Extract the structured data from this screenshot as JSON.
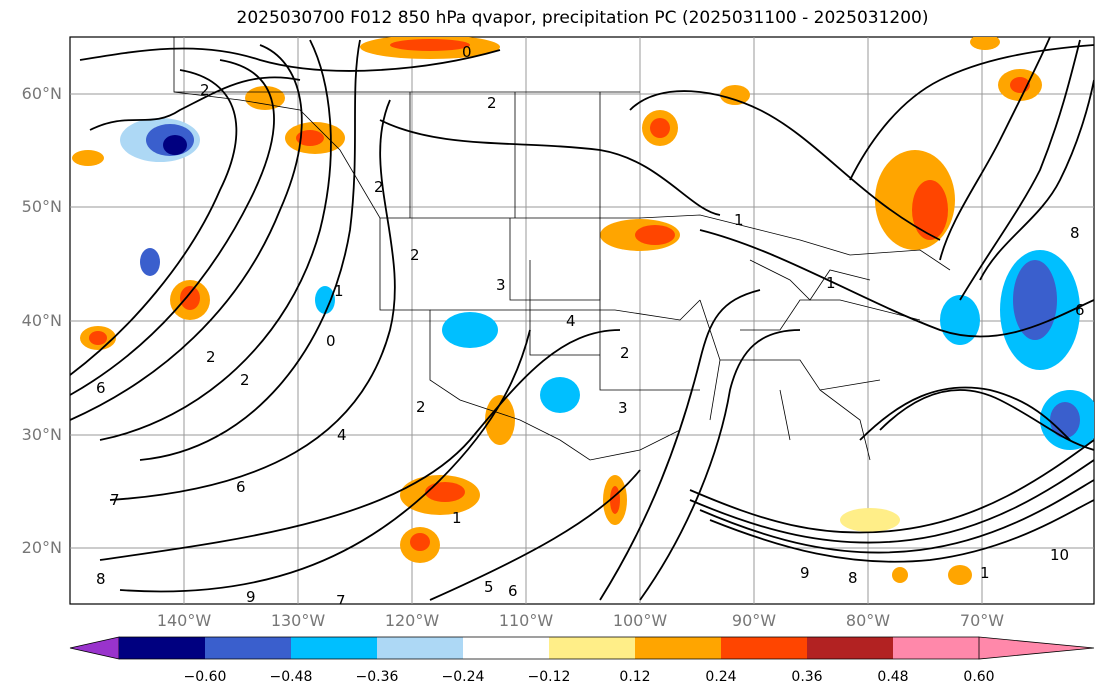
{
  "title": "2025030700 F012 850 hPa qvapor, precipitation PC (2025031100 - 2025031200)",
  "map": {
    "lat_labels": [
      "60°N",
      "50°N",
      "40°N",
      "30°N",
      "20°N"
    ],
    "lon_labels": [
      "140°W",
      "130°W",
      "120°W",
      "110°W",
      "100°W",
      "90°W",
      "80°W",
      "70°W"
    ],
    "contour_labels": [
      "0",
      "2",
      "2",
      "1",
      "2",
      "1",
      "2",
      "3",
      "4",
      "2",
      "2",
      "1",
      "0",
      "4",
      "2",
      "6",
      "6",
      "7",
      "8",
      "9",
      "7",
      "5",
      "6",
      "1",
      "9",
      "10",
      "1",
      "6",
      "8",
      "3",
      "2",
      "8"
    ]
  },
  "colorbar": {
    "colors": [
      "#9933cc",
      "#000080",
      "#3a5fcd",
      "#00bfff",
      "#add8f5",
      "#ffffff",
      "#ffee88",
      "#ffa500",
      "#ff4500",
      "#b22222",
      "#ff88aa"
    ],
    "ticks": [
      "−0.60",
      "−0.48",
      "−0.36",
      "−0.24",
      "−0.12",
      "0.12",
      "0.24",
      "0.36",
      "0.48",
      "0.60"
    ]
  },
  "shading_colors": {
    "orange": "#ffa500",
    "yellow": "#ffee88",
    "red": "#ff4500",
    "dark_red": "#b22222",
    "light_blue": "#add8f5",
    "blue": "#00bfff",
    "med_blue": "#3a5fcd",
    "navy": "#000080"
  }
}
